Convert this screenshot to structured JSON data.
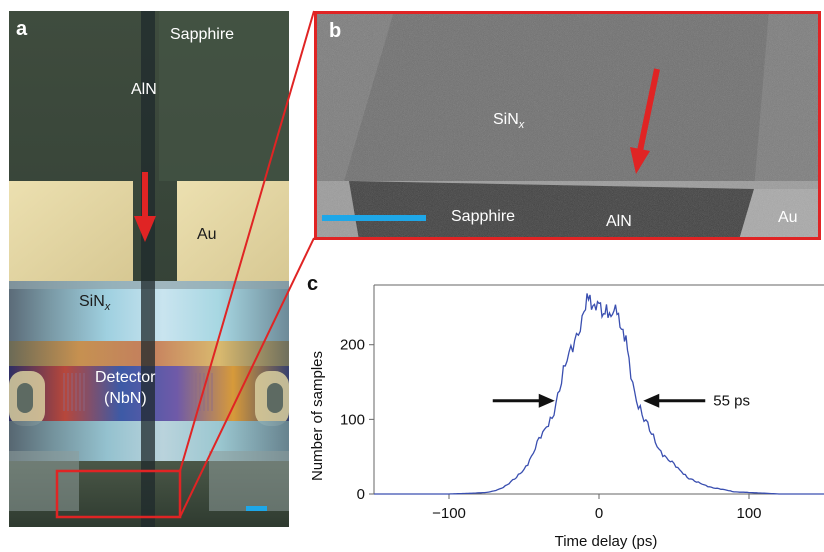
{
  "panel_a": {
    "letter": "a",
    "labels": {
      "sapphire": "Sapphire",
      "aln": "AlN",
      "au": "Au",
      "sinx_base": "SiN",
      "sinx_sub": "x",
      "detector": "Detector",
      "nbn": "(NbN)"
    },
    "colors": {
      "arrow": "#e02424",
      "scale_bar": "#1ea7e8",
      "highlight_box": "#e02424"
    }
  },
  "panel_b": {
    "letter": "b",
    "labels": {
      "sinx_base": "SiN",
      "sinx_sub": "x",
      "sapphire": "Sapphire",
      "aln": "AlN",
      "au": "Au"
    },
    "colors": {
      "frame": "#e02424",
      "arrow": "#e02424",
      "scale_bar": "#1ea7e8"
    }
  },
  "panel_c": {
    "letter": "c",
    "annotation": "55 ps"
  },
  "chart_data": {
    "type": "line",
    "xlabel": "Time delay (ps)",
    "ylabel": "Number of samples",
    "xlim": [
      -150,
      150
    ],
    "ylim": [
      0,
      280
    ],
    "xticks": [
      -100,
      0,
      100
    ],
    "xtick_labels": [
      "−100",
      "0",
      "100"
    ],
    "yticks": [
      0,
      100,
      200
    ],
    "ytick_labels": [
      "0",
      "100",
      "200"
    ],
    "grid": false,
    "line_color": "#3a4fb0",
    "series": [
      {
        "x": [
          -150,
          -120,
          -100,
          -85,
          -75,
          -70,
          -65,
          -60,
          -55,
          -50,
          -45,
          -40,
          -35,
          -30,
          -25,
          -20,
          -15,
          -10,
          -8,
          -5,
          -2,
          0,
          3,
          5,
          8,
          10,
          12,
          15,
          18,
          20,
          25,
          30,
          35,
          40,
          45,
          50,
          55,
          60,
          65,
          70,
          75,
          80,
          85,
          90,
          100,
          110,
          120,
          135,
          150
        ],
        "values": [
          0,
          0,
          0,
          1,
          2,
          4,
          8,
          14,
          22,
          34,
          50,
          70,
          90,
          115,
          150,
          185,
          215,
          240,
          262,
          255,
          258,
          250,
          232,
          255,
          238,
          245,
          250,
          225,
          200,
          175,
          130,
          100,
          80,
          62,
          48,
          38,
          30,
          22,
          16,
          12,
          9,
          7,
          5,
          3,
          2,
          1,
          0,
          0,
          0
        ]
      }
    ],
    "annotation": {
      "text": "55 ps",
      "fwhm_ps": 55,
      "at_count": 125
    }
  }
}
